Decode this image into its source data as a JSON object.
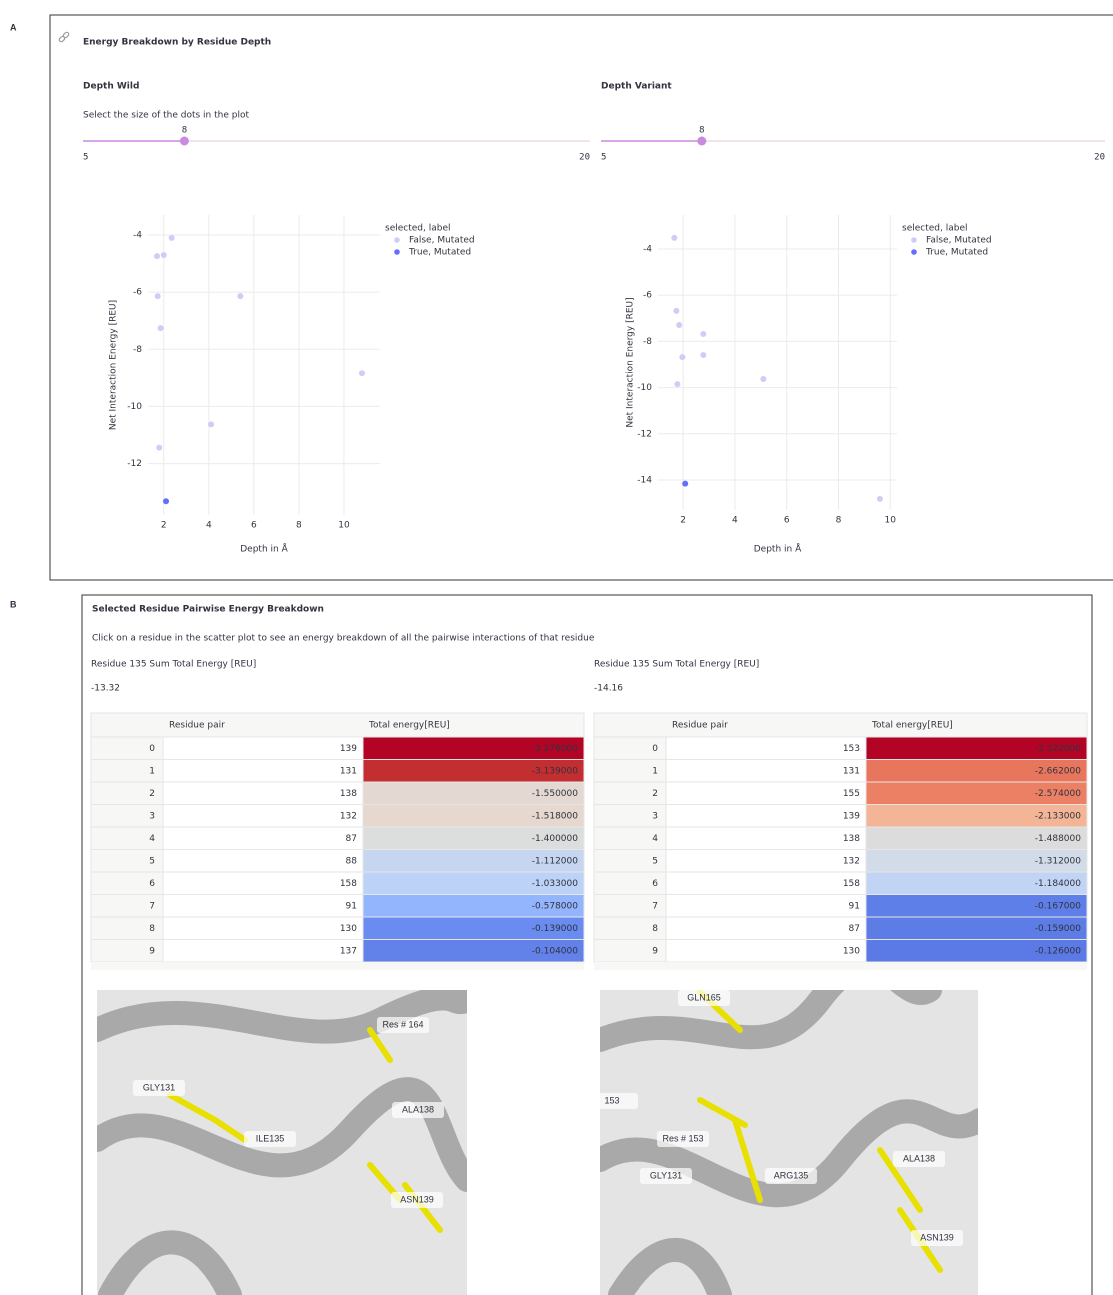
{
  "panel_a": {
    "label": "A",
    "title": "Energy Breakdown by Residue Depth",
    "columns": [
      {
        "heading": "Depth Wild",
        "slider": {
          "label": "Select the size of the dots in the plot",
          "value": 8,
          "min": 5,
          "max": 20
        },
        "chart": {
          "type": "scatter",
          "xlabel": "Depth in Å",
          "ylabel": "Net Interaction Energy [REU]",
          "legend_title": "selected, label",
          "xlim": [
            1.3,
            11.6
          ],
          "ylim": [
            -13.8,
            -3.3
          ],
          "xticks": [
            2,
            4,
            6,
            8,
            10
          ],
          "yticks": [
            -4,
            -6,
            -8,
            -10,
            -12
          ],
          "grid": true,
          "series": [
            {
              "name": "False, Mutated",
              "color": "#cfcdf7",
              "x": [
                2.35,
                1.7,
                2.0,
                1.73,
                5.4,
                1.86,
                10.8,
                4.1,
                1.8
              ],
              "values": [
                -4.1,
                -4.74,
                -4.7,
                -6.14,
                -6.14,
                -7.26,
                -8.84,
                -10.63,
                -11.44
              ]
            },
            {
              "name": "True, Mutated",
              "color": "#636efa",
              "x": [
                2.1
              ],
              "values": [
                -13.32
              ]
            }
          ]
        }
      },
      {
        "heading": "Depth Variant",
        "slider": {
          "value": 8,
          "min": 5,
          "max": 20
        },
        "chart": {
          "type": "scatter",
          "xlabel": "Depth in Å",
          "ylabel": "Net Interaction Energy [REU]",
          "legend_title": "selected, label",
          "xlim": [
            1.03,
            10.26
          ],
          "ylim": [
            -15.3,
            -2.53
          ],
          "xticks": [
            2,
            4,
            6,
            8,
            10
          ],
          "yticks": [
            -4,
            -6,
            -8,
            -10,
            -12,
            -14
          ],
          "grid": true,
          "series": [
            {
              "name": "False, Mutated",
              "color": "#cfcdf7",
              "x": [
                1.66,
                1.74,
                1.85,
                2.78,
                1.97,
                2.78,
                1.78,
                5.1,
                9.6
              ],
              "values": [
                -3.52,
                -6.68,
                -7.29,
                -7.68,
                -8.68,
                -8.59,
                -9.85,
                -9.63,
                -14.82
              ]
            },
            {
              "name": "True, Mutated",
              "color": "#636efa",
              "x": [
                2.08
              ],
              "values": [
                -14.16
              ]
            }
          ]
        }
      }
    ]
  },
  "panel_b": {
    "label": "B",
    "title": "Selected Residue Pairwise Energy Breakdown",
    "subtitle": "Click on a residue in the scatter plot to see an energy breakdown of all the pairwise interactions of that residue",
    "columns": [
      {
        "metric_label": "Residue 135 Sum Total Energy [REU]",
        "metric_value": -13.32,
        "headers": [
          "Residue pair",
          "Total energy[REU]"
        ],
        "rows": [
          {
            "index": 0,
            "pair": 139,
            "energy": "-3.276000",
            "color": "#b40426"
          },
          {
            "index": 1,
            "pair": 131,
            "energy": "-3.139000",
            "color": "#c32e31"
          },
          {
            "index": 2,
            "pair": 138,
            "energy": "-1.550000",
            "color": "#e4d9d2"
          },
          {
            "index": 3,
            "pair": 132,
            "energy": "-1.518000",
            "color": "#e6d7cf"
          },
          {
            "index": 4,
            "pair": 87,
            "energy": "-1.400000",
            "color": "#dcdddd"
          },
          {
            "index": 5,
            "pair": 88,
            "energy": "-1.112000",
            "color": "#c6d6f1"
          },
          {
            "index": 6,
            "pair": 158,
            "energy": "-1.033000",
            "color": "#bcd2f7"
          },
          {
            "index": 7,
            "pair": 91,
            "energy": "-0.578000",
            "color": "#93b5fe"
          },
          {
            "index": 8,
            "pair": 130,
            "energy": "-0.139000",
            "color": "#6a8bef"
          },
          {
            "index": 9,
            "pair": 137,
            "energy": "-0.104000",
            "color": "#6282ea"
          }
        ],
        "image_labels": [
          "Res # 164",
          "GLY131",
          "ILE135",
          "ALA138",
          "ASN139"
        ]
      },
      {
        "metric_label": "Residue 135 Sum Total Energy [REU]",
        "metric_value": -14.16,
        "headers": [
          "Residue pair",
          "Total energy[REU]"
        ],
        "rows": [
          {
            "index": 0,
            "pair": 153,
            "energy": "-3.322000",
            "color": "#b40426"
          },
          {
            "index": 1,
            "pair": 131,
            "energy": "-2.662000",
            "color": "#e8765c"
          },
          {
            "index": 2,
            "pair": 155,
            "energy": "-2.574000",
            "color": "#ec8064"
          },
          {
            "index": 3,
            "pair": 139,
            "energy": "-2.133000",
            "color": "#f4b597"
          },
          {
            "index": 4,
            "pair": 138,
            "energy": "-1.488000",
            "color": "#dddcdc"
          },
          {
            "index": 5,
            "pair": 132,
            "energy": "-1.312000",
            "color": "#d2dbe8"
          },
          {
            "index": 6,
            "pair": 158,
            "energy": "-1.184000",
            "color": "#c1d4f4"
          },
          {
            "index": 7,
            "pair": 91,
            "energy": "-0.167000",
            "color": "#5f7fe8"
          },
          {
            "index": 8,
            "pair": 87,
            "energy": "-0.159000",
            "color": "#5e7ce6"
          },
          {
            "index": 9,
            "pair": 130,
            "energy": "-0.126000",
            "color": "#5b7ae5"
          }
        ],
        "image_labels": [
          "GLN165",
          "153",
          "Res # 153",
          "GLY131",
          "ARG135",
          "ALA138",
          "ASN139"
        ]
      }
    ]
  }
}
